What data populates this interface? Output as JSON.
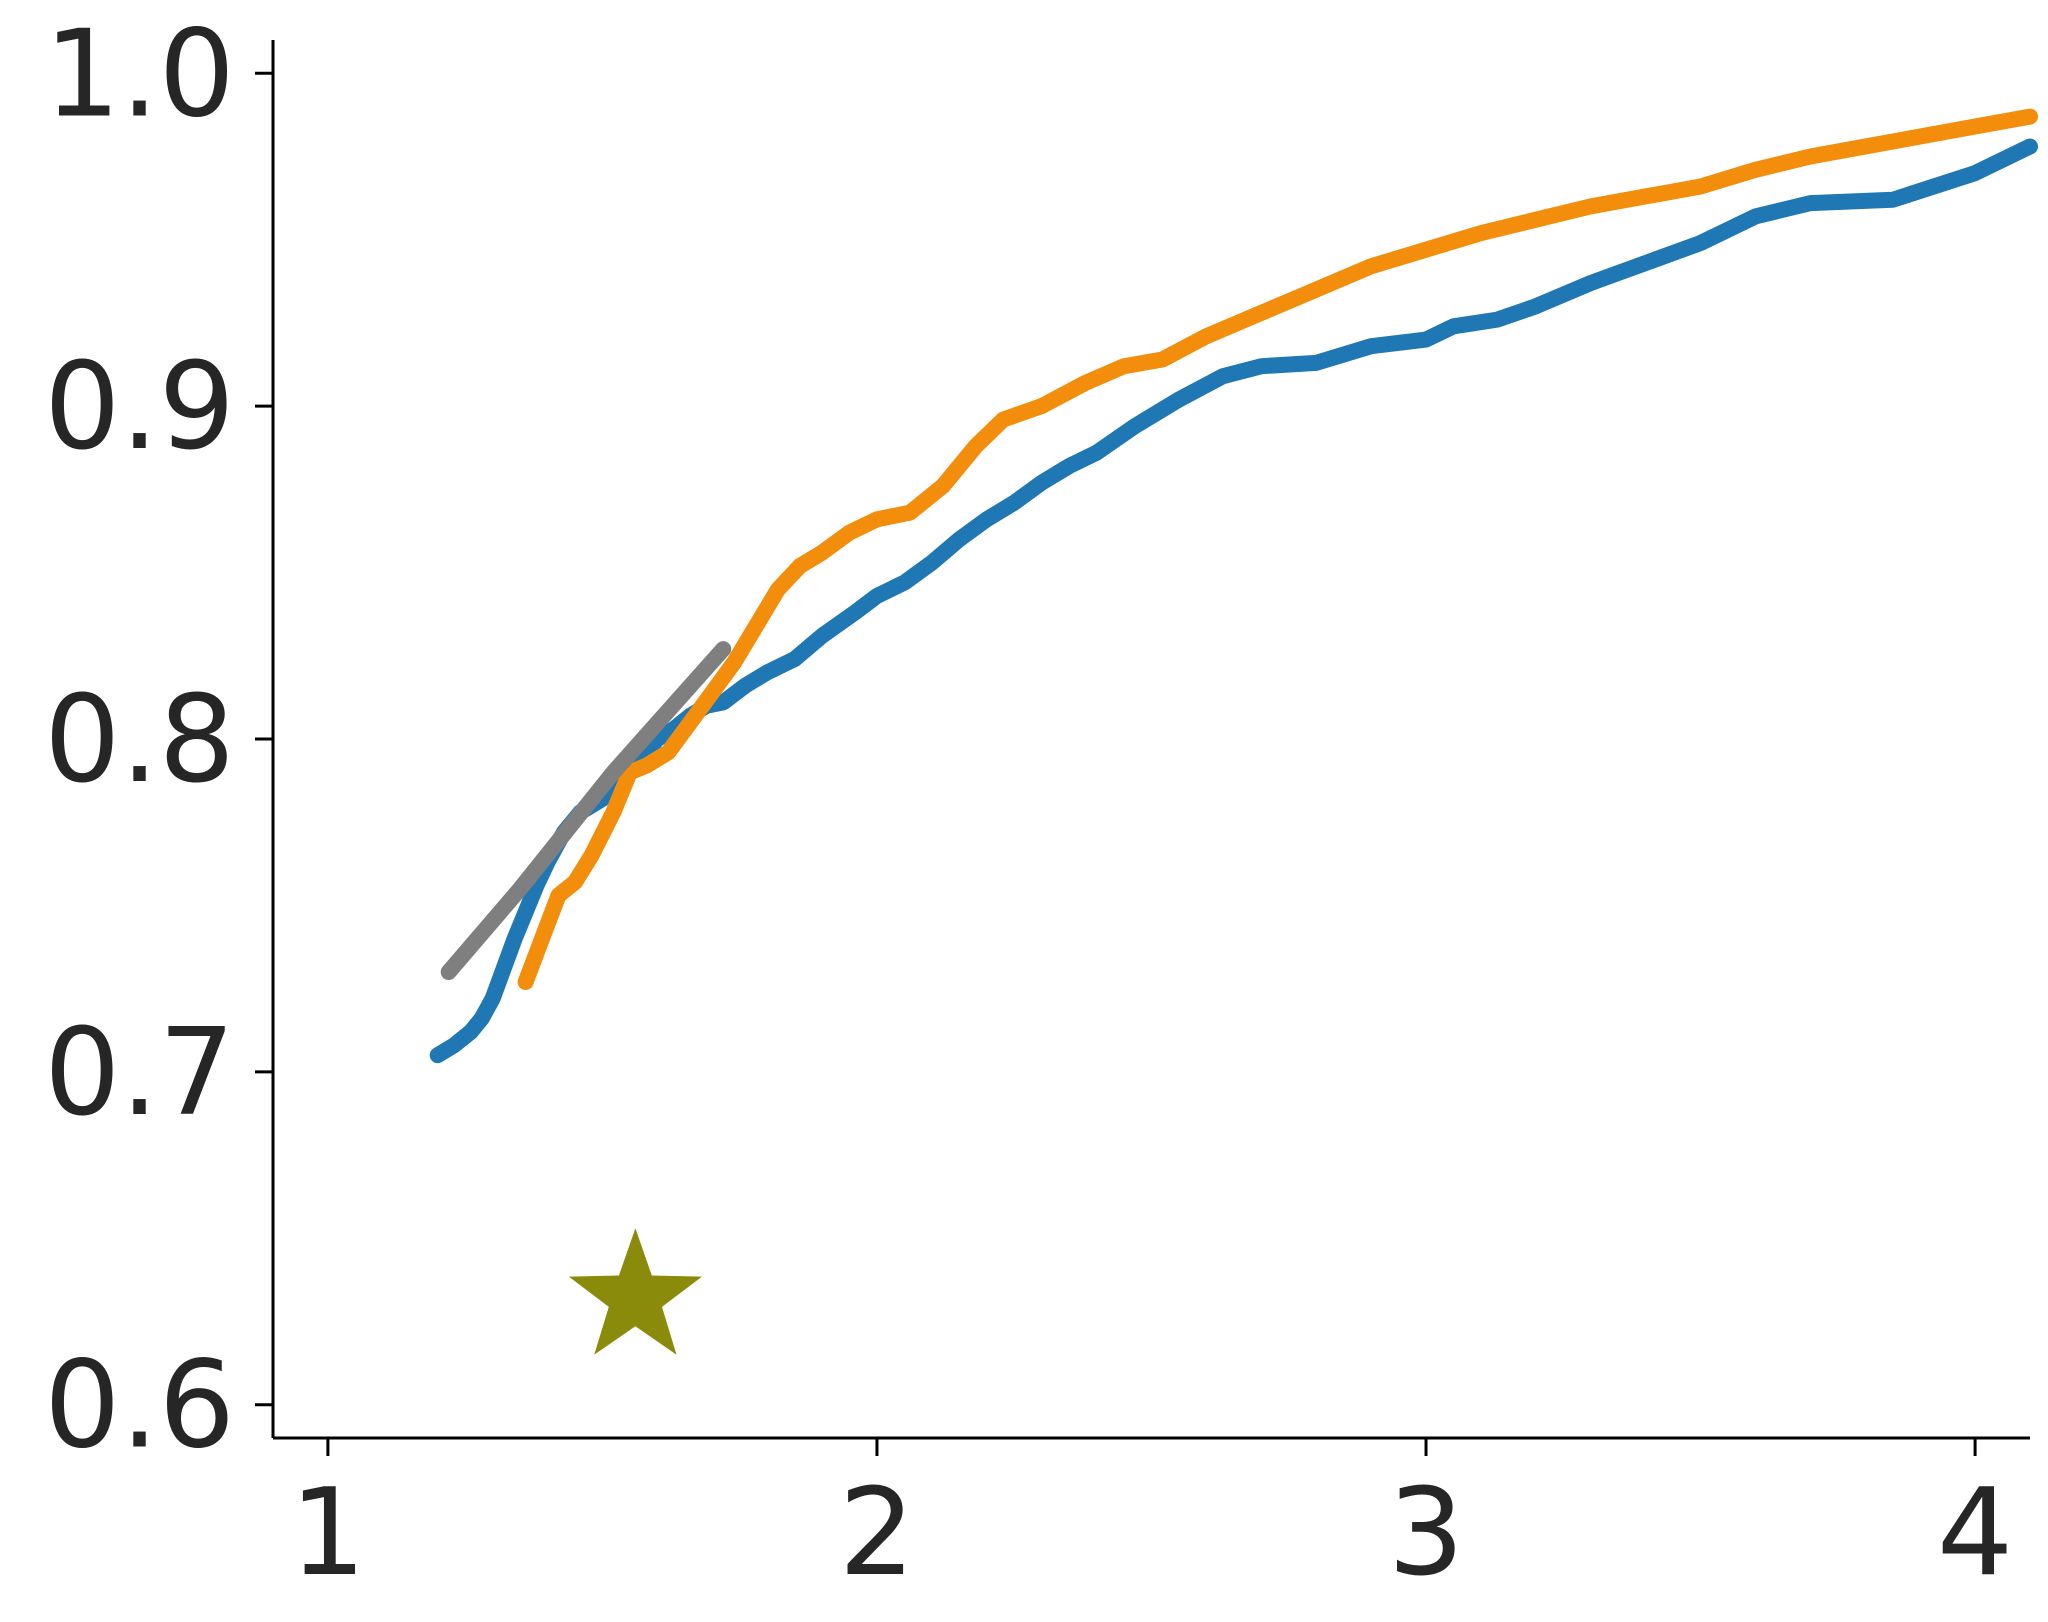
{
  "chart_data": {
    "type": "line",
    "title": "",
    "xlabel": "",
    "ylabel": "",
    "xlim": [
      0.9,
      4.1
    ],
    "ylim": [
      0.59,
      1.01
    ],
    "xticks": [
      1,
      2,
      3,
      4
    ],
    "xtick_labels": [
      "1",
      "2",
      "3",
      "4"
    ],
    "yticks": [
      0.6,
      0.7,
      0.8,
      0.9,
      1.0
    ],
    "ytick_labels": [
      "0.6",
      "0.7",
      "0.8",
      "0.9",
      "1.0"
    ],
    "grid": false,
    "series": [
      {
        "color": "#1f77b4",
        "x": [
          1.2,
          1.23,
          1.26,
          1.28,
          1.3,
          1.32,
          1.34,
          1.36,
          1.38,
          1.4,
          1.43,
          1.46,
          1.5,
          1.53,
          1.56,
          1.58,
          1.6,
          1.63,
          1.66,
          1.69,
          1.72,
          1.76,
          1.8,
          1.85,
          1.9,
          1.96,
          2.0,
          2.05,
          2.1,
          2.15,
          2.2,
          2.25,
          2.3,
          2.35,
          2.4,
          2.47,
          2.55,
          2.63,
          2.7,
          2.8,
          2.9,
          3.0,
          3.05,
          3.13,
          3.2,
          3.3,
          3.4,
          3.5,
          3.6,
          3.7,
          3.85,
          4.0,
          4.1
        ],
        "y": [
          0.705,
          0.708,
          0.712,
          0.716,
          0.722,
          0.731,
          0.74,
          0.748,
          0.756,
          0.763,
          0.772,
          0.778,
          0.782,
          0.787,
          0.792,
          0.796,
          0.8,
          0.803,
          0.807,
          0.81,
          0.811,
          0.816,
          0.82,
          0.824,
          0.831,
          0.838,
          0.843,
          0.847,
          0.853,
          0.86,
          0.866,
          0.871,
          0.877,
          0.882,
          0.886,
          0.894,
          0.902,
          0.909,
          0.912,
          0.913,
          0.918,
          0.92,
          0.924,
          0.926,
          0.93,
          0.937,
          0.943,
          0.949,
          0.957,
          0.961,
          0.962,
          0.97,
          0.978
        ]
      },
      {
        "color": "#f28e0b",
        "x": [
          1.36,
          1.39,
          1.42,
          1.45,
          1.48,
          1.52,
          1.55,
          1.58,
          1.62,
          1.66,
          1.7,
          1.74,
          1.78,
          1.82,
          1.86,
          1.9,
          1.95,
          2.0,
          2.06,
          2.12,
          2.18,
          2.23,
          2.3,
          2.38,
          2.45,
          2.52,
          2.6,
          2.7,
          2.8,
          2.9,
          3.0,
          3.1,
          3.2,
          3.3,
          3.4,
          3.5,
          3.6,
          3.7,
          3.8,
          3.9,
          4.0,
          4.1
        ],
        "y": [
          0.727,
          0.74,
          0.753,
          0.757,
          0.765,
          0.778,
          0.79,
          0.792,
          0.796,
          0.805,
          0.814,
          0.823,
          0.834,
          0.845,
          0.852,
          0.856,
          0.862,
          0.866,
          0.868,
          0.876,
          0.888,
          0.896,
          0.9,
          0.907,
          0.912,
          0.914,
          0.921,
          0.928,
          0.935,
          0.942,
          0.947,
          0.952,
          0.956,
          0.96,
          0.963,
          0.966,
          0.971,
          0.975,
          0.978,
          0.981,
          0.984,
          0.987
        ]
      },
      {
        "color": "#7f7f7f",
        "x": [
          1.22,
          1.35,
          1.52,
          1.72
        ],
        "y": [
          0.73,
          0.755,
          0.79,
          0.827
        ]
      }
    ],
    "markers": [
      {
        "shape": "star",
        "color": "#8b8b0b",
        "x": 1.56,
        "y": 0.632
      }
    ]
  }
}
